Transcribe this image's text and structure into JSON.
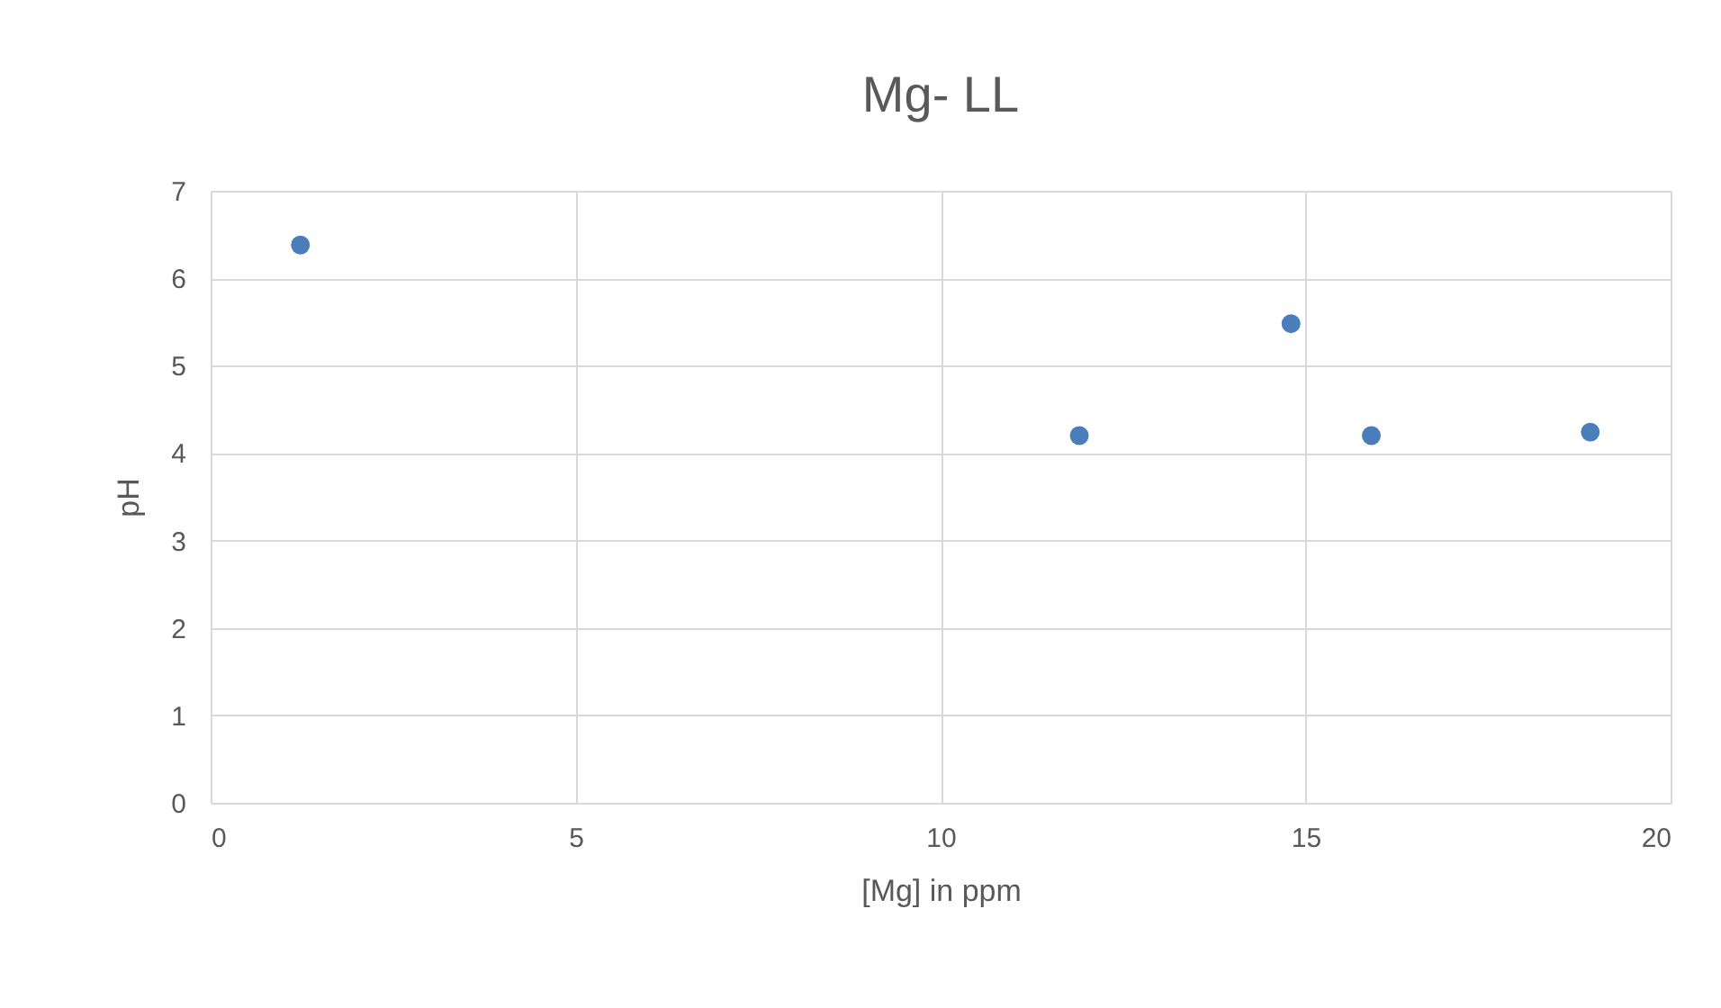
{
  "chart_data": {
    "type": "scatter",
    "title": "Mg- LL",
    "xlabel": "[Mg]  in ppm",
    "ylabel": "pH",
    "x": [
      1.23,
      11.9,
      14.8,
      15.9,
      18.9
    ],
    "series": [
      {
        "color": "#4a7ebb",
        "values": [
          6.38,
          4.2,
          5.48,
          4.2,
          4.24
        ]
      }
    ],
    "xlim": [
      0,
      20
    ],
    "xticks": [
      0,
      5,
      10,
      15,
      20
    ],
    "ylim": [
      0,
      7
    ],
    "yticks": [
      0,
      1,
      2,
      3,
      4,
      5,
      6,
      7
    ],
    "grid": true,
    "marker": "circle"
  }
}
